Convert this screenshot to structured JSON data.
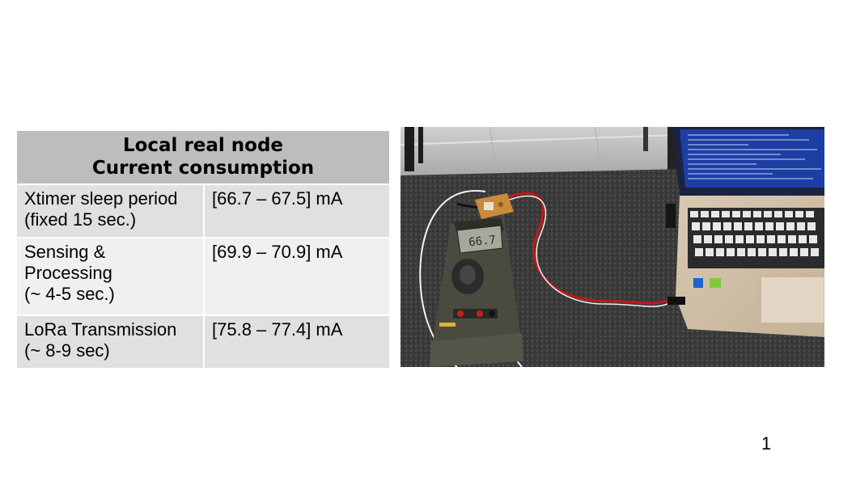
{
  "table": {
    "header_line1": "Local real node",
    "header_line2": "Current consumption",
    "rows": [
      {
        "label": "Xtimer sleep period\n(fixed 15 sec.)",
        "value": "[66.7 – 67.5] mA"
      },
      {
        "label": "Sensing &\nProcessing\n(~ 4-5 sec.)",
        "value": "[69.9 – 70.9] mA"
      },
      {
        "label": "LoRa Transmission\n(~ 8-9 sec)",
        "value": "[75.8 – 77.4] mA"
      }
    ]
  },
  "photo": {
    "multimeter_reading": "66.7"
  },
  "page_number": "1"
}
